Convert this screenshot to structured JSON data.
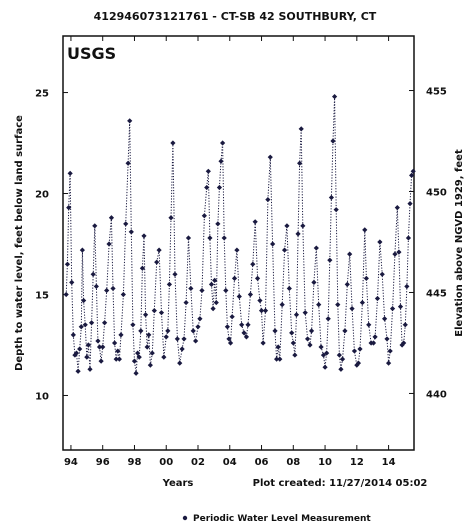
{
  "chart_data": {
    "type": "scatter",
    "title": "412946073121761 - CT-SB 42 SOUTHBURY, CT",
    "logo": "USGS",
    "xlabel": "Years",
    "ylabel": "Depth to water level, feet below land surface",
    "y2label": "Elevation above NGVD 1929, feet",
    "plot_created": "Plot created: 11/27/2014 05:02",
    "legend": {
      "label": "Periodic Water Level Measurement",
      "placement": "bottom"
    },
    "x_range": [
      1993.5,
      2015.6
    ],
    "ylim": [
      27.8,
      7.3
    ],
    "y2lim": [
      457.7,
      437.2
    ],
    "x_ticks": [
      1994,
      1996,
      1998,
      2000,
      2002,
      2004,
      2006,
      2008,
      2010,
      2012,
      2014
    ],
    "x_tick_labels": [
      "94",
      "96",
      "98",
      "00",
      "02",
      "04",
      "06",
      "08",
      "10",
      "12",
      "14"
    ],
    "y_ticks": [
      10,
      15,
      20,
      25
    ],
    "y_tick_labels": [
      "10",
      "15",
      "20",
      "25"
    ],
    "y2_ticks": [
      455,
      450,
      445,
      440
    ],
    "y2_tick_labels": [
      "455",
      "450",
      "445",
      "440"
    ],
    "grid": false,
    "marker": "diamond",
    "line_style": "dotted",
    "series": [
      {
        "name": "Periodic Water Level Measurement",
        "points": [
          [
            1993.7,
            15.0
          ],
          [
            1993.78,
            16.5
          ],
          [
            1993.86,
            19.3
          ],
          [
            1993.95,
            21.0
          ],
          [
            1994.05,
            15.6
          ],
          [
            1994.15,
            13.0
          ],
          [
            1994.25,
            12.0
          ],
          [
            1994.35,
            12.1
          ],
          [
            1994.45,
            11.2
          ],
          [
            1994.55,
            12.3
          ],
          [
            1994.65,
            13.4
          ],
          [
            1994.72,
            17.2
          ],
          [
            1994.8,
            14.7
          ],
          [
            1994.9,
            13.5
          ],
          [
            1995.0,
            11.9
          ],
          [
            1995.1,
            12.5
          ],
          [
            1995.2,
            11.3
          ],
          [
            1995.3,
            13.6
          ],
          [
            1995.4,
            16.0
          ],
          [
            1995.5,
            18.4
          ],
          [
            1995.6,
            15.4
          ],
          [
            1995.7,
            12.7
          ],
          [
            1995.8,
            12.4
          ],
          [
            1995.9,
            11.7
          ],
          [
            1996.0,
            12.4
          ],
          [
            1996.12,
            13.6
          ],
          [
            1996.25,
            15.2
          ],
          [
            1996.4,
            17.5
          ],
          [
            1996.55,
            18.8
          ],
          [
            1996.65,
            15.3
          ],
          [
            1996.75,
            12.6
          ],
          [
            1996.85,
            11.8
          ],
          [
            1996.95,
            12.2
          ],
          [
            1997.05,
            11.8
          ],
          [
            1997.15,
            13.0
          ],
          [
            1997.3,
            15.0
          ],
          [
            1997.45,
            18.5
          ],
          [
            1997.6,
            21.5
          ],
          [
            1997.7,
            23.6
          ],
          [
            1997.8,
            18.1
          ],
          [
            1997.9,
            13.5
          ],
          [
            1998.0,
            11.7
          ],
          [
            1998.1,
            11.1
          ],
          [
            1998.2,
            12.1
          ],
          [
            1998.3,
            11.9
          ],
          [
            1998.4,
            13.2
          ],
          [
            1998.5,
            16.3
          ],
          [
            1998.6,
            17.9
          ],
          [
            1998.7,
            14.0
          ],
          [
            1998.8,
            12.4
          ],
          [
            1998.9,
            13.0
          ],
          [
            1999.0,
            11.5
          ],
          [
            1999.12,
            12.1
          ],
          [
            1999.25,
            14.2
          ],
          [
            1999.4,
            16.6
          ],
          [
            1999.55,
            17.2
          ],
          [
            1999.7,
            14.1
          ],
          [
            1999.85,
            11.9
          ],
          [
            2000.0,
            12.9
          ],
          [
            2000.1,
            13.2
          ],
          [
            2000.2,
            15.5
          ],
          [
            2000.3,
            18.8
          ],
          [
            2000.42,
            22.5
          ],
          [
            2000.55,
            16.0
          ],
          [
            2000.7,
            12.8
          ],
          [
            2000.85,
            11.6
          ],
          [
            2001.0,
            12.3
          ],
          [
            2001.12,
            12.8
          ],
          [
            2001.25,
            14.6
          ],
          [
            2001.4,
            17.8
          ],
          [
            2001.55,
            15.3
          ],
          [
            2001.7,
            13.2
          ],
          [
            2001.85,
            12.7
          ],
          [
            2002.0,
            13.4
          ],
          [
            2002.12,
            13.8
          ],
          [
            2002.25,
            15.2
          ],
          [
            2002.4,
            18.9
          ],
          [
            2002.55,
            20.3
          ],
          [
            2002.65,
            21.1
          ],
          [
            2002.75,
            17.8
          ],
          [
            2002.85,
            15.5
          ],
          [
            2002.95,
            14.3
          ],
          [
            2003.05,
            15.7
          ],
          [
            2003.15,
            14.6
          ],
          [
            2003.25,
            18.5
          ],
          [
            2003.35,
            20.3
          ],
          [
            2003.45,
            21.6
          ],
          [
            2003.55,
            22.5
          ],
          [
            2003.65,
            17.8
          ],
          [
            2003.75,
            15.2
          ],
          [
            2003.85,
            13.4
          ],
          [
            2003.95,
            12.8
          ],
          [
            2004.05,
            12.6
          ],
          [
            2004.15,
            13.9
          ],
          [
            2004.3,
            15.8
          ],
          [
            2004.45,
            17.2
          ],
          [
            2004.6,
            14.9
          ],
          [
            2004.75,
            13.5
          ],
          [
            2004.9,
            13.1
          ],
          [
            2005.05,
            12.9
          ],
          [
            2005.15,
            13.5
          ],
          [
            2005.3,
            15.0
          ],
          [
            2005.45,
            16.5
          ],
          [
            2005.6,
            18.6
          ],
          [
            2005.75,
            15.8
          ],
          [
            2005.9,
            14.7
          ],
          [
            2006.0,
            14.2
          ],
          [
            2006.1,
            12.6
          ],
          [
            2006.25,
            14.2
          ],
          [
            2006.4,
            19.7
          ],
          [
            2006.55,
            21.8
          ],
          [
            2006.7,
            17.5
          ],
          [
            2006.85,
            13.2
          ],
          [
            2006.95,
            11.8
          ],
          [
            2007.05,
            12.4
          ],
          [
            2007.15,
            11.8
          ],
          [
            2007.3,
            14.5
          ],
          [
            2007.45,
            17.2
          ],
          [
            2007.6,
            18.4
          ],
          [
            2007.75,
            15.3
          ],
          [
            2007.9,
            13.1
          ],
          [
            2008.0,
            12.6
          ],
          [
            2008.1,
            12.0
          ],
          [
            2008.2,
            14.0
          ],
          [
            2008.3,
            18.0
          ],
          [
            2008.4,
            21.5
          ],
          [
            2008.5,
            23.2
          ],
          [
            2008.6,
            18.4
          ],
          [
            2008.75,
            14.1
          ],
          [
            2008.9,
            12.8
          ],
          [
            2009.05,
            12.5
          ],
          [
            2009.15,
            13.2
          ],
          [
            2009.3,
            15.6
          ],
          [
            2009.45,
            17.3
          ],
          [
            2009.6,
            14.5
          ],
          [
            2009.75,
            12.4
          ],
          [
            2009.9,
            12.0
          ],
          [
            2010.0,
            11.4
          ],
          [
            2010.1,
            12.1
          ],
          [
            2010.2,
            13.8
          ],
          [
            2010.3,
            16.7
          ],
          [
            2010.4,
            19.8
          ],
          [
            2010.5,
            22.6
          ],
          [
            2010.6,
            24.8
          ],
          [
            2010.7,
            19.2
          ],
          [
            2010.8,
            14.5
          ],
          [
            2010.9,
            12.0
          ],
          [
            2011.0,
            11.3
          ],
          [
            2011.1,
            11.8
          ],
          [
            2011.25,
            13.2
          ],
          [
            2011.4,
            15.5
          ],
          [
            2011.55,
            17.0
          ],
          [
            2011.7,
            14.3
          ],
          [
            2011.85,
            12.2
          ],
          [
            2012.0,
            11.5
          ],
          [
            2012.1,
            11.6
          ],
          [
            2012.2,
            12.3
          ],
          [
            2012.35,
            14.6
          ],
          [
            2012.5,
            18.2
          ],
          [
            2012.6,
            15.8
          ],
          [
            2012.75,
            13.5
          ],
          [
            2012.9,
            12.6
          ],
          [
            2013.05,
            12.6
          ],
          [
            2013.15,
            12.9
          ],
          [
            2013.3,
            14.8
          ],
          [
            2013.45,
            17.6
          ],
          [
            2013.6,
            16.0
          ],
          [
            2013.75,
            13.8
          ],
          [
            2013.9,
            12.8
          ],
          [
            2014.0,
            11.6
          ],
          [
            2014.1,
            12.2
          ],
          [
            2014.25,
            14.3
          ],
          [
            2014.4,
            17.0
          ],
          [
            2014.55,
            19.3
          ],
          [
            2014.65,
            17.1
          ],
          [
            2014.75,
            14.4
          ],
          [
            2014.85,
            12.5
          ],
          [
            2014.95,
            12.6
          ],
          [
            2015.05,
            13.5
          ],
          [
            2015.15,
            15.4
          ],
          [
            2015.25,
            17.8
          ],
          [
            2015.35,
            19.5
          ],
          [
            2015.45,
            20.9
          ],
          [
            2015.55,
            21.1
          ]
        ]
      }
    ]
  }
}
